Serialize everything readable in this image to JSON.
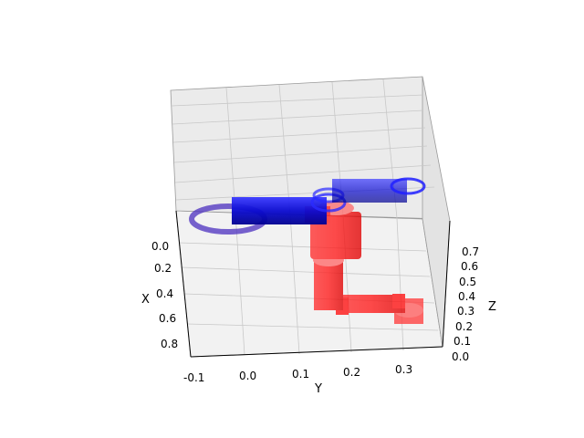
{
  "chart_data": {
    "type": "3d-surface",
    "title": "",
    "grid": true,
    "axes": {
      "x": {
        "label": "X",
        "ticks": [
          "0.0",
          "0.2",
          "0.4",
          "0.6",
          "0.8"
        ]
      },
      "y": {
        "label": "Y",
        "ticks": [
          "-0.1",
          "0.0",
          "0.1",
          "0.2",
          "0.3"
        ]
      },
      "z": {
        "label": "Z",
        "ticks": [
          "0.0",
          "0.1",
          "0.2",
          "0.3",
          "0.4",
          "0.5",
          "0.6",
          "0.7"
        ]
      }
    },
    "series": [
      {
        "color": "#1a1aff",
        "parts": [
          "ring-left",
          "link-upper",
          "joint-center",
          "link-right",
          "ring-right"
        ]
      },
      {
        "color": "#ff2020",
        "parts": [
          "joint-shoulder",
          "link-vertical",
          "joint-elbow",
          "link-lower",
          "end-cylinder"
        ]
      }
    ]
  }
}
